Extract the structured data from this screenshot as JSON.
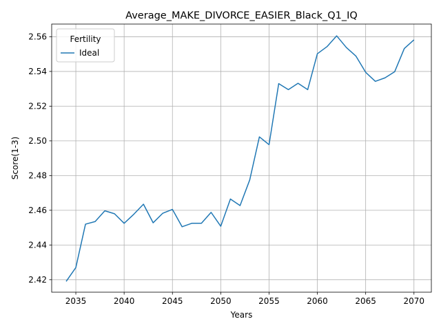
{
  "chart_data": {
    "type": "line",
    "title": "Average_MAKE_DIVORCE_EASIER_Black_Q1_IQ",
    "xlabel": "Years",
    "ylabel": "Score(1-3)",
    "xlim": [
      2032.5,
      2071.8
    ],
    "ylim": [
      2.4128,
      2.5673
    ],
    "xticks": [
      2035,
      2040,
      2045,
      2050,
      2055,
      2060,
      2065,
      2070
    ],
    "yticks": [
      2.42,
      2.44,
      2.46,
      2.48,
      2.5,
      2.52,
      2.54,
      2.56
    ],
    "grid": true,
    "legend": {
      "title": "Fertility",
      "placement": "top-left"
    },
    "series": [
      {
        "name": "Ideal",
        "color": "#1f77b4",
        "x": [
          2034,
          2035,
          2036,
          2037,
          2038,
          2039,
          2040,
          2041,
          2042,
          2043,
          2044,
          2045,
          2046,
          2047,
          2048,
          2049,
          2050,
          2051,
          2052,
          2053,
          2054,
          2055,
          2056,
          2057,
          2058,
          2059,
          2060,
          2061,
          2062,
          2063,
          2064,
          2065,
          2066,
          2067,
          2068,
          2069,
          2070
        ],
        "y": [
          2.419,
          2.427,
          2.452,
          2.4535,
          2.4597,
          2.458,
          2.4525,
          2.4577,
          2.4635,
          2.4528,
          2.4583,
          2.4605,
          2.4505,
          2.4525,
          2.4525,
          2.4588,
          2.4508,
          2.4665,
          2.4627,
          2.4775,
          2.5023,
          2.4978,
          2.533,
          2.5295,
          2.5332,
          2.5295,
          2.5502,
          2.5543,
          2.5605,
          2.5538,
          2.5488,
          2.5395,
          2.5343,
          2.5363,
          2.5398,
          2.5532,
          2.5582
        ]
      }
    ]
  }
}
